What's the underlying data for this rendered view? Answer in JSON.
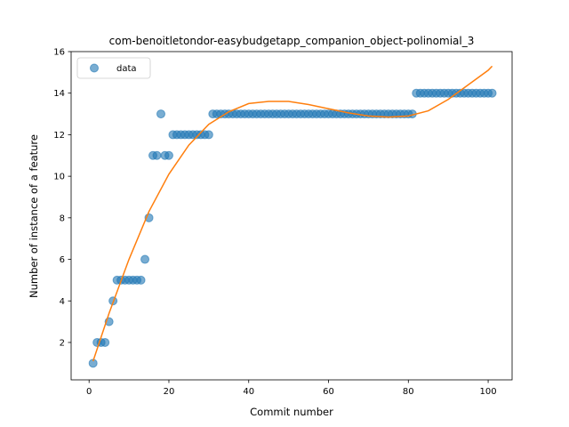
{
  "chart_data": {
    "type": "scatter",
    "title": "com-benoitletondor-easybudgetapp_companion_object-polinomial_3",
    "xlabel": "Commit number",
    "ylabel": "Number of instance of a feature",
    "xlim": [
      -4.5,
      106
    ],
    "ylim": [
      0.2,
      16
    ],
    "xticks": [
      0,
      20,
      40,
      60,
      80,
      100
    ],
    "yticks": [
      2,
      4,
      6,
      8,
      10,
      12,
      14,
      16
    ],
    "grid": false,
    "legend_position": "top-left",
    "series": [
      {
        "name": "data",
        "kind": "points",
        "color": "#1f77b4",
        "x": [
          1,
          2,
          3,
          4,
          5,
          6,
          7,
          8,
          9,
          10,
          11,
          12,
          13,
          14,
          15,
          16,
          17,
          18,
          19,
          20,
          21,
          22,
          23,
          24,
          25,
          26,
          27,
          28,
          29,
          30,
          31,
          32,
          33,
          34,
          35,
          36,
          37,
          38,
          39,
          40,
          41,
          42,
          43,
          44,
          45,
          46,
          47,
          48,
          49,
          50,
          51,
          52,
          53,
          54,
          55,
          56,
          57,
          58,
          59,
          60,
          61,
          62,
          63,
          64,
          65,
          66,
          67,
          68,
          69,
          70,
          71,
          72,
          73,
          74,
          75,
          76,
          77,
          78,
          79,
          80,
          81,
          82,
          83,
          84,
          85,
          86,
          87,
          88,
          89,
          90,
          91,
          92,
          93,
          94,
          95,
          96,
          97,
          98,
          99,
          100,
          101
        ],
        "y": [
          1,
          2,
          2,
          2,
          3,
          4,
          5,
          5,
          5,
          5,
          5,
          5,
          5,
          6,
          8,
          11,
          11,
          13,
          11,
          11,
          12,
          12,
          12,
          12,
          12,
          12,
          12,
          12,
          12,
          12,
          13,
          13,
          13,
          13,
          13,
          13,
          13,
          13,
          13,
          13,
          13,
          13,
          13,
          13,
          13,
          13,
          13,
          13,
          13,
          13,
          13,
          13,
          13,
          13,
          13,
          13,
          13,
          13,
          13,
          13,
          13,
          13,
          13,
          13,
          13,
          13,
          13,
          13,
          13,
          13,
          13,
          13,
          13,
          13,
          13,
          13,
          13,
          13,
          13,
          13,
          13,
          14,
          14,
          14,
          14,
          14,
          14,
          14,
          14,
          14,
          14,
          14,
          14,
          14,
          14,
          14,
          14,
          14,
          14,
          14,
          14
        ]
      },
      {
        "name": "",
        "kind": "line",
        "color": "#ff7f0e",
        "x": [
          1,
          5,
          10,
          15,
          20,
          25,
          30,
          35,
          40,
          45,
          50,
          55,
          60,
          65,
          70,
          75,
          80,
          85,
          90,
          95,
          100,
          101
        ],
        "y": [
          1.1,
          3.4,
          6.0,
          8.3,
          10.1,
          11.5,
          12.5,
          13.1,
          13.5,
          13.6,
          13.6,
          13.45,
          13.25,
          13.05,
          12.9,
          12.85,
          12.9,
          13.15,
          13.7,
          14.4,
          15.1,
          15.3
        ]
      }
    ]
  }
}
